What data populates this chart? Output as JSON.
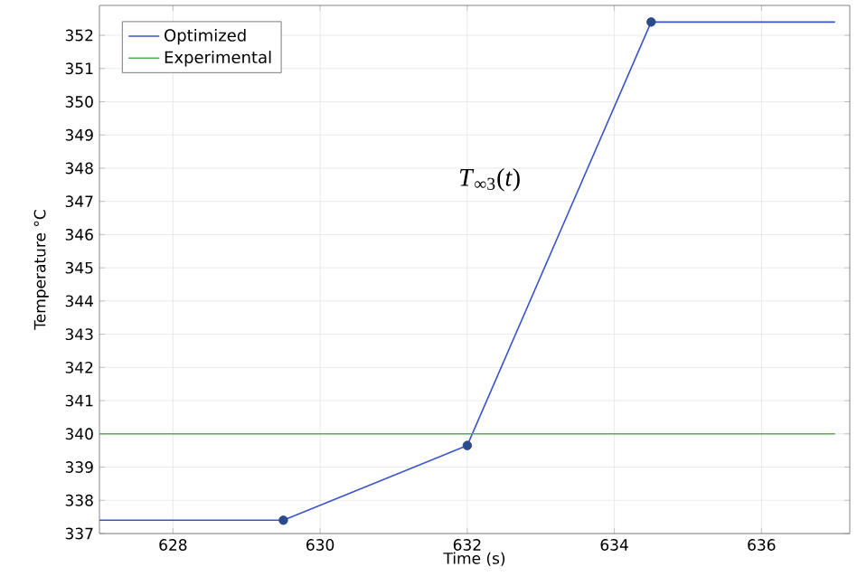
{
  "chart_data": {
    "type": "line",
    "xlabel": "Time (s)",
    "ylabel": "Temperature °C",
    "x": [
      627,
      629.5,
      632,
      634.5,
      637
    ],
    "series": [
      {
        "name": "Optimized",
        "color": "#3a55cc",
        "values": [
          337.4,
          337.4,
          339.65,
          352.4,
          352.4
        ]
      },
      {
        "name": "Experimental",
        "color": "#4caf50",
        "x": [
          627,
          637
        ],
        "values": [
          340,
          340
        ]
      },
      {
        "type": "scatter",
        "color": "#2b4a8c",
        "x": [
          629.5,
          632,
          634.5
        ],
        "values": [
          337.4,
          339.65,
          352.4
        ],
        "marker": "circle"
      }
    ],
    "annotations": [
      "*T*$_{∞3}$(*t*)"
    ],
    "xlim": [
      627,
      637.2
    ],
    "ylim": [
      337,
      352.9
    ],
    "xticks": [
      628,
      630,
      632,
      634,
      636
    ],
    "yticks": [
      337,
      338,
      339,
      340,
      341,
      342,
      343,
      344,
      345,
      346,
      347,
      348,
      349,
      350,
      351,
      352
    ],
    "grid": true,
    "legend": "top left",
    "marker": "none",
    "line_style": "solid"
  }
}
